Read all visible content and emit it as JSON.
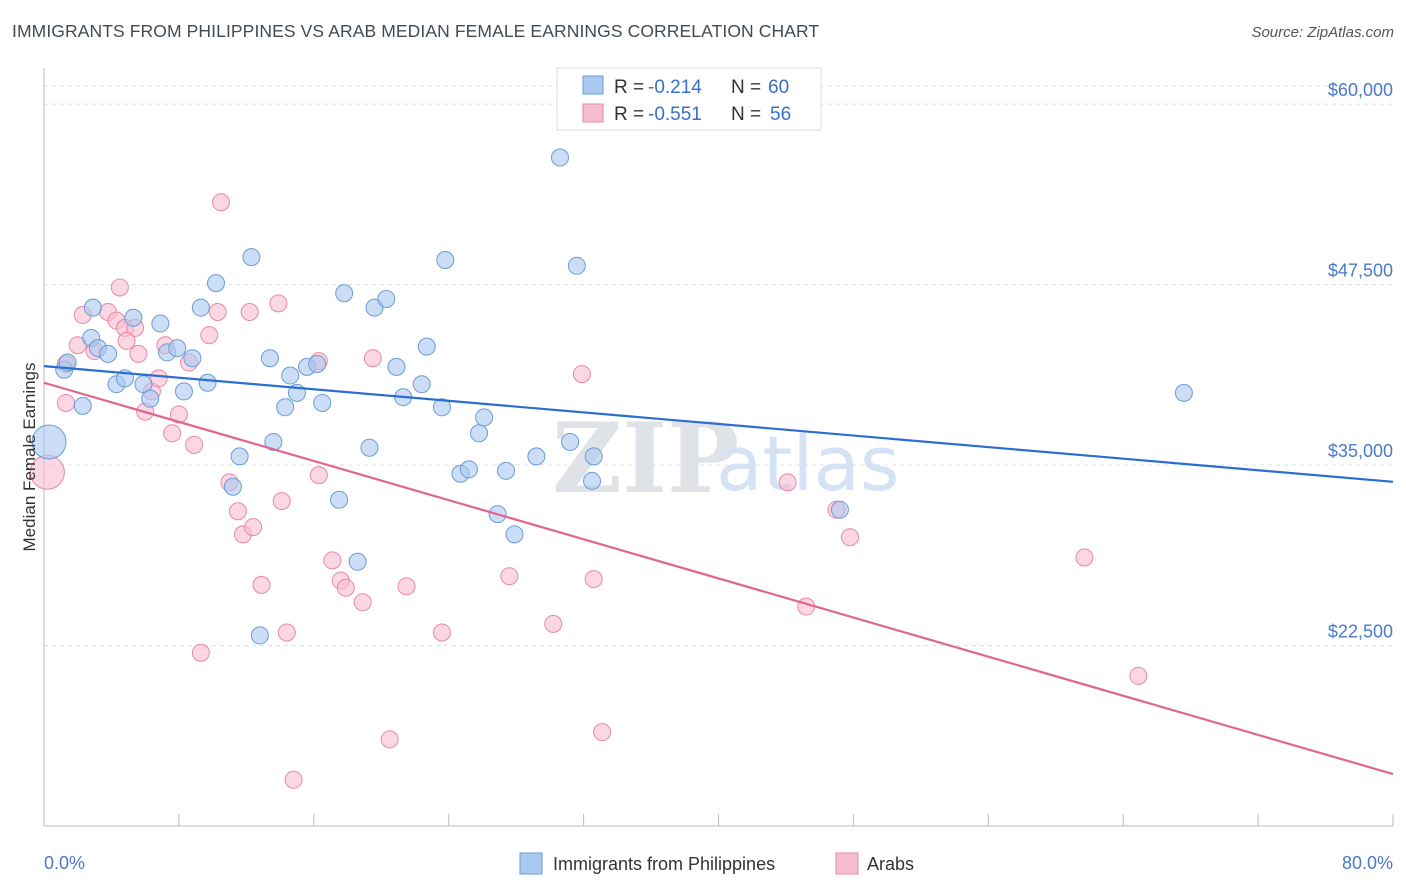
{
  "title": "IMMIGRANTS FROM PHILIPPINES VS ARAB MEDIAN FEMALE EARNINGS CORRELATION CHART",
  "source": "Source: ZipAtlas.com",
  "watermark": {
    "zip": "ZIP",
    "atlas": "atlas"
  },
  "colors": {
    "blue_fill": "#aac8f0",
    "blue_stroke": "#6b9bd8",
    "blue_line": "#2a6fcf",
    "pink_fill": "#f6bcd0",
    "pink_stroke": "#e889a8",
    "pink_line": "#e06592",
    "grid": "#dde1e6",
    "axis_label": "#4a7ac9"
  },
  "legend": {
    "r_label": "R =",
    "n_label": "N =",
    "rows": [
      {
        "series": "Immigrants from Philippines",
        "r": "-0.214",
        "n": "60"
      },
      {
        "series": "Arabs",
        "r": "-0.551",
        "n": "56"
      }
    ]
  },
  "chart_data": {
    "type": "scatter",
    "title": "IMMIGRANTS FROM PHILIPPINES VS ARAB MEDIAN FEMALE EARNINGS CORRELATION CHART",
    "xlabel": "",
    "ylabel": "Median Female Earnings",
    "xlim": [
      0,
      80
    ],
    "ylim": [
      10000,
      62500
    ],
    "x_tick_labels": [
      "0.0%",
      "80.0%"
    ],
    "y_ticks": [
      22500,
      35000,
      47500,
      60000
    ],
    "y_tick_labels": [
      "$22,500",
      "$35,000",
      "$47,500",
      "$60,000"
    ],
    "grid": true,
    "series": [
      {
        "name": "Immigrants from Philippines",
        "color": "#aac8f0",
        "points": [
          [
            1.2,
            41.6
          ],
          [
            1.4,
            42.1
          ],
          [
            2.3,
            39.1
          ],
          [
            2.8,
            43.8
          ],
          [
            2.9,
            45.9
          ],
          [
            3.2,
            43.1
          ],
          [
            3.8,
            42.7
          ],
          [
            4.3,
            40.6
          ],
          [
            4.8,
            41.0
          ],
          [
            5.3,
            45.2
          ],
          [
            5.9,
            40.6
          ],
          [
            6.3,
            39.6
          ],
          [
            6.9,
            44.8
          ],
          [
            7.3,
            42.8
          ],
          [
            7.9,
            43.1
          ],
          [
            8.3,
            40.1
          ],
          [
            8.8,
            42.4
          ],
          [
            9.3,
            45.9
          ],
          [
            9.7,
            40.7
          ],
          [
            10.2,
            47.6
          ],
          [
            11.2,
            33.5
          ],
          [
            11.6,
            35.6
          ],
          [
            12.3,
            49.4
          ],
          [
            12.8,
            23.2
          ],
          [
            13.4,
            42.4
          ],
          [
            13.6,
            36.6
          ],
          [
            14.3,
            39.0
          ],
          [
            14.6,
            41.2
          ],
          [
            15.0,
            40.0
          ],
          [
            15.6,
            41.8
          ],
          [
            16.2,
            42.0
          ],
          [
            16.5,
            39.3
          ],
          [
            17.5,
            32.6
          ],
          [
            17.8,
            46.9
          ],
          [
            18.6,
            28.3
          ],
          [
            19.3,
            36.2
          ],
          [
            19.6,
            45.9
          ],
          [
            20.3,
            46.5
          ],
          [
            20.9,
            41.8
          ],
          [
            21.3,
            39.7
          ],
          [
            22.4,
            40.6
          ],
          [
            22.7,
            43.2
          ],
          [
            23.6,
            39.0
          ],
          [
            23.8,
            49.2
          ],
          [
            24.7,
            34.4
          ],
          [
            25.2,
            34.7
          ],
          [
            25.8,
            37.2
          ],
          [
            26.1,
            38.3
          ],
          [
            26.9,
            31.6
          ],
          [
            27.4,
            34.6
          ],
          [
            27.9,
            30.2
          ],
          [
            29.2,
            35.6
          ],
          [
            30.6,
            56.3
          ],
          [
            31.2,
            36.6
          ],
          [
            31.6,
            48.8
          ],
          [
            32.6,
            35.6
          ],
          [
            32.5,
            33.9
          ],
          [
            47.2,
            31.9
          ],
          [
            67.6,
            40.0
          ],
          [
            0.3,
            36.6
          ]
        ]
      },
      {
        "name": "Arabs",
        "color": "#f6bcd0",
        "points": [
          [
            0.2,
            34.5
          ],
          [
            1.3,
            39.3
          ],
          [
            1.3,
            42.0
          ],
          [
            2.0,
            43.3
          ],
          [
            2.3,
            45.4
          ],
          [
            3.0,
            42.9
          ],
          [
            3.8,
            45.6
          ],
          [
            4.3,
            45.0
          ],
          [
            4.5,
            47.3
          ],
          [
            4.8,
            44.5
          ],
          [
            5.4,
            44.5
          ],
          [
            5.6,
            42.7
          ],
          [
            6.0,
            38.7
          ],
          [
            6.4,
            40.1
          ],
          [
            6.8,
            41.0
          ],
          [
            7.2,
            43.3
          ],
          [
            7.6,
            37.2
          ],
          [
            8.0,
            38.5
          ],
          [
            8.6,
            42.1
          ],
          [
            8.9,
            36.4
          ],
          [
            9.3,
            22.0
          ],
          [
            9.8,
            44.0
          ],
          [
            10.3,
            45.6
          ],
          [
            10.5,
            53.2
          ],
          [
            11.0,
            33.8
          ],
          [
            11.5,
            31.8
          ],
          [
            11.8,
            30.2
          ],
          [
            12.2,
            45.6
          ],
          [
            12.4,
            30.7
          ],
          [
            13.9,
            46.2
          ],
          [
            14.1,
            32.5
          ],
          [
            14.4,
            23.4
          ],
          [
            14.8,
            13.2
          ],
          [
            16.3,
            42.2
          ],
          [
            16.3,
            34.3
          ],
          [
            17.1,
            28.4
          ],
          [
            17.6,
            27.0
          ],
          [
            17.9,
            26.5
          ],
          [
            18.9,
            25.5
          ],
          [
            19.5,
            42.4
          ],
          [
            20.5,
            16.0
          ],
          [
            21.5,
            26.6
          ],
          [
            23.6,
            23.4
          ],
          [
            27.6,
            27.3
          ],
          [
            30.2,
            24.0
          ],
          [
            31.9,
            41.3
          ],
          [
            32.6,
            27.1
          ],
          [
            33.1,
            16.5
          ],
          [
            44.1,
            33.8
          ],
          [
            45.2,
            25.2
          ],
          [
            47.0,
            31.9
          ],
          [
            47.8,
            30.0
          ],
          [
            61.7,
            28.6
          ],
          [
            64.9,
            20.4
          ],
          [
            4.9,
            43.6
          ],
          [
            12.9,
            26.7
          ]
        ]
      }
    ],
    "trend_lines": [
      {
        "series": "Immigrants from Philippines",
        "x": [
          0,
          80
        ],
        "y": [
          41.85,
          33.84
        ]
      },
      {
        "series": "Arabs",
        "x": [
          0,
          80
        ],
        "y": [
          40.7,
          13.6
        ]
      }
    ],
    "y_units": "thousands of dollars"
  },
  "bottom_legend": [
    {
      "label": "Immigrants from Philippines"
    },
    {
      "label": "Arabs"
    }
  ]
}
